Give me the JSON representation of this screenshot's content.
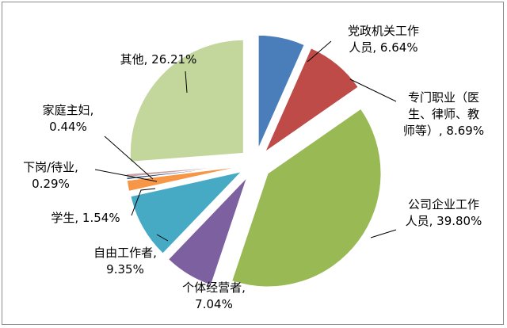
{
  "chart_data": {
    "type": "pie",
    "exploded": true,
    "slices": [
      {
        "label_lines": [
          "党政机关工作",
          "人员, 6.64%"
        ],
        "name": "党政机关工作人员",
        "value": 6.64,
        "percent_label": "6.64%",
        "color": "#4a7ebb"
      },
      {
        "label_lines": [
          "专门职业（医",
          "生、律师、教",
          "师等）, 8.69%"
        ],
        "name": "专门职业（医生、律师、教师等）",
        "value": 8.69,
        "percent_label": "8.69%",
        "color": "#be4b48"
      },
      {
        "label_lines": [
          "公司企业工作",
          "人员, 39.80%"
        ],
        "name": "公司企业工作人员",
        "value": 39.8,
        "percent_label": "39.80%",
        "color": "#98b954"
      },
      {
        "label_lines": [
          "个体经营者,",
          "7.04%"
        ],
        "name": "个体经营者",
        "value": 7.04,
        "percent_label": "7.04%",
        "color": "#7d60a0"
      },
      {
        "label_lines": [
          "自由工作者,",
          "9.35%"
        ],
        "name": "自由工作者",
        "value": 9.35,
        "percent_label": "9.35%",
        "color": "#46aac5"
      },
      {
        "label_lines": [
          "学生, 1.54%"
        ],
        "name": "学生",
        "value": 1.54,
        "percent_label": "1.54%",
        "color": "#f79646"
      },
      {
        "label_lines": [
          "下岗/待业,",
          "0.29%"
        ],
        "name": "下岗/待业",
        "value": 0.29,
        "percent_label": "0.29%",
        "color": "#2c4d75"
      },
      {
        "label_lines": [
          "家庭主妇,",
          "0.44%"
        ],
        "name": "家庭主妇",
        "value": 0.44,
        "percent_label": "0.44%",
        "color": "#c9a2a6"
      },
      {
        "label_lines": [
          "其他, 26.21%"
        ],
        "name": "其他",
        "value": 26.21,
        "percent_label": "26.21%",
        "color": "#c3d69b"
      }
    ]
  }
}
